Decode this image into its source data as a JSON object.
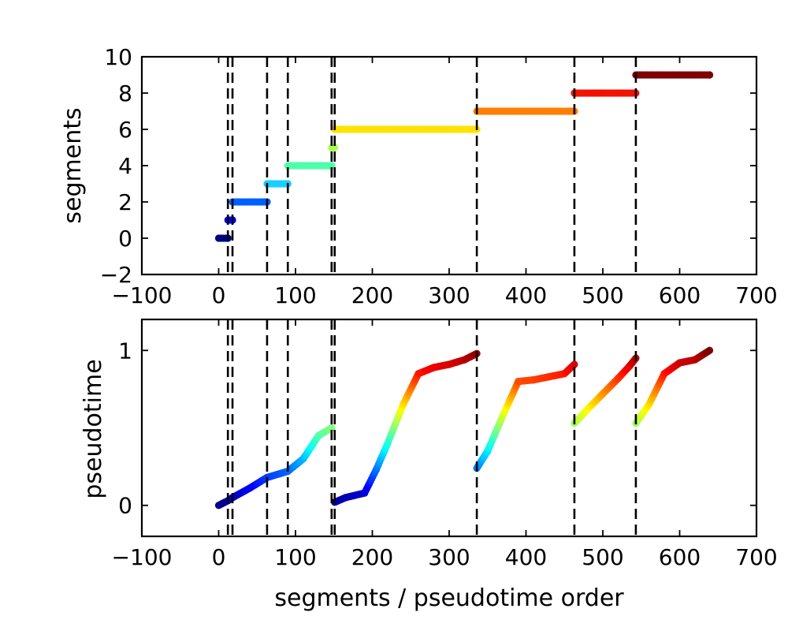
{
  "chart_data": [
    {
      "type": "scatter",
      "name": "top",
      "ylabel": "segments",
      "xlabel": "",
      "xlim": [
        -100,
        700
      ],
      "ylim": [
        -2,
        10
      ],
      "xticks": [
        -100,
        0,
        100,
        200,
        300,
        400,
        500,
        600,
        700
      ],
      "xtick_labels": [
        "−100",
        "0",
        "100",
        "200",
        "300",
        "400",
        "500",
        "600",
        "700"
      ],
      "yticks": [
        -2,
        0,
        2,
        4,
        6,
        8,
        10
      ],
      "ytick_labels": [
        "−2",
        "0",
        "2",
        "4",
        "6",
        "8",
        "10"
      ],
      "vlines": [
        12,
        18,
        63,
        90,
        147,
        151,
        336,
        463,
        543
      ],
      "series": [
        {
          "x_start": 0,
          "x_end": 12,
          "y": 0,
          "color": "#00007f"
        },
        {
          "x_start": 12,
          "x_end": 18,
          "y": 1,
          "color": "#0000f5"
        },
        {
          "x_start": 18,
          "x_end": 63,
          "y": 2,
          "color": "#0060ff"
        },
        {
          "x_start": 63,
          "x_end": 90,
          "y": 3,
          "color": "#16d0ff"
        },
        {
          "x_start": 90,
          "x_end": 147,
          "y": 4,
          "color": "#4dffaa"
        },
        {
          "x_start": 147,
          "x_end": 151,
          "y": 5,
          "color": "#aaff4d"
        },
        {
          "x_start": 151,
          "x_end": 336,
          "y": 6,
          "color": "#ffe200"
        },
        {
          "x_start": 336,
          "x_end": 463,
          "y": 7,
          "color": "#ff7e00"
        },
        {
          "x_start": 463,
          "x_end": 543,
          "y": 8,
          "color": "#f21300"
        },
        {
          "x_start": 543,
          "x_end": 639,
          "y": 9,
          "color": "#7f0000"
        }
      ]
    },
    {
      "type": "scatter",
      "name": "bottom",
      "ylabel": "pseudotime",
      "xlabel": "segments / pseudotime order",
      "xlim": [
        -100,
        700
      ],
      "ylim": [
        -0.2,
        1.2
      ],
      "xticks": [
        -100,
        0,
        100,
        200,
        300,
        400,
        500,
        600,
        700
      ],
      "xtick_labels": [
        "−100",
        "0",
        "100",
        "200",
        "300",
        "400",
        "500",
        "600",
        "700"
      ],
      "yticks": [
        0,
        1
      ],
      "ytick_labels": [
        "0",
        "1"
      ],
      "vlines": [
        12,
        18,
        63,
        90,
        147,
        151,
        336,
        463,
        543
      ],
      "series": [
        {
          "x": [
            0,
            12,
            18,
            40,
            63,
            90,
            110,
            130,
            147
          ],
          "y": [
            0.0,
            0.03,
            0.05,
            0.11,
            0.18,
            0.22,
            0.3,
            0.45,
            0.5
          ]
        },
        {
          "x": [
            151,
            165,
            190,
            205,
            220,
            240,
            260,
            280,
            300,
            320,
            336
          ],
          "y": [
            0.02,
            0.05,
            0.08,
            0.23,
            0.4,
            0.65,
            0.85,
            0.89,
            0.91,
            0.94,
            0.98
          ]
        },
        {
          "x": [
            336,
            350,
            370,
            390,
            410,
            430,
            450,
            463
          ],
          "y": [
            0.24,
            0.35,
            0.58,
            0.8,
            0.81,
            0.83,
            0.85,
            0.91
          ]
        },
        {
          "x": [
            463,
            480,
            500,
            520,
            535,
            543
          ],
          "y": [
            0.53,
            0.62,
            0.72,
            0.82,
            0.9,
            0.95
          ]
        },
        {
          "x": [
            543,
            560,
            580,
            600,
            620,
            639
          ],
          "y": [
            0.53,
            0.65,
            0.85,
            0.92,
            0.94,
            1.0
          ]
        }
      ]
    }
  ]
}
